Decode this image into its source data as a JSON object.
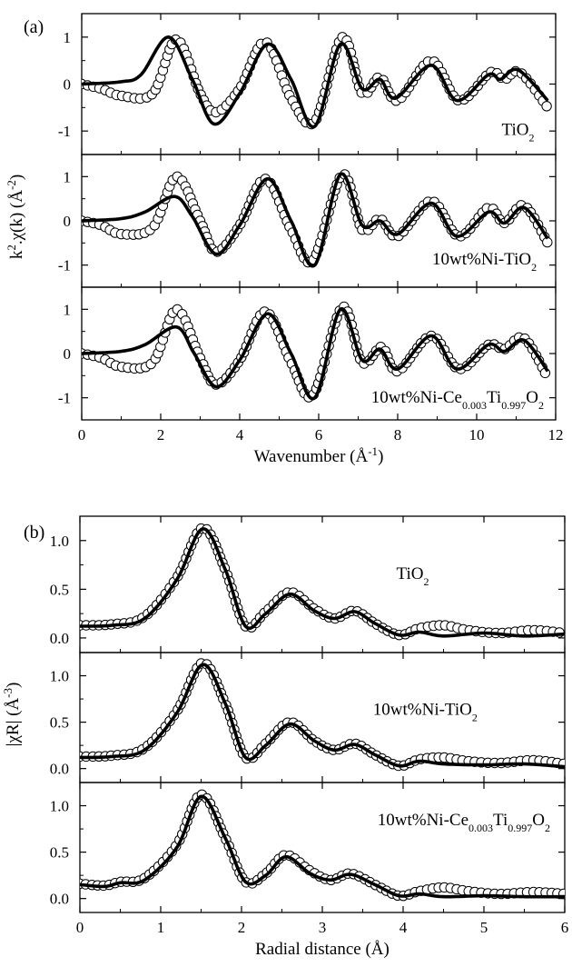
{
  "chart_data": [
    {
      "type": "line",
      "panel_label": "(a)",
      "xlabel_main": "Wavenumber (Å",
      "xlabel_sup": "-1",
      "xlabel_end": ")",
      "ylabel_pre": "k",
      "ylabel_sup": "2",
      "ylabel_mid": ".χ(k) (Å",
      "ylabel_sup2": "-2",
      "ylabel_end": ")",
      "xlim": [
        0,
        12
      ],
      "ylim": [
        -1.5,
        1.5
      ],
      "x_ticks": [
        "0",
        "2",
        "4",
        "6",
        "8",
        "10",
        "12"
      ],
      "y_ticks": [
        "-1",
        "0",
        "1"
      ],
      "panels": [
        {
          "label_runs": [
            "TiO",
            "2"
          ],
          "experimental_markers": "open circles",
          "fit_line": "thick solid",
          "fit_points": [
            [
              0,
              0
            ],
            [
              1,
              0.05
            ],
            [
              1.5,
              0.2
            ],
            [
              2.2,
              1.0
            ],
            [
              2.8,
              0.1
            ],
            [
              3.35,
              -0.85
            ],
            [
              4.0,
              -0.2
            ],
            [
              4.7,
              0.85
            ],
            [
              5.3,
              0.1
            ],
            [
              5.9,
              -0.9
            ],
            [
              6.55,
              0.85
            ],
            [
              7.1,
              -0.1
            ],
            [
              7.55,
              0.1
            ],
            [
              7.95,
              -0.3
            ],
            [
              8.85,
              0.4
            ],
            [
              9.5,
              -0.35
            ],
            [
              10.3,
              0.2
            ],
            [
              10.6,
              0.1
            ],
            [
              11.05,
              0.3
            ],
            [
              11.8,
              -0.35
            ]
          ],
          "experimental_points": [
            [
              0,
              0
            ],
            [
              0.5,
              -0.1
            ],
            [
              1.0,
              -0.25
            ],
            [
              1.8,
              -0.2
            ],
            [
              2.4,
              0.95
            ],
            [
              3.0,
              -0.2
            ],
            [
              3.4,
              -0.6
            ],
            [
              4.0,
              -0.1
            ],
            [
              4.65,
              0.9
            ],
            [
              5.3,
              -0.3
            ],
            [
              5.9,
              -0.8
            ],
            [
              6.6,
              1.0
            ],
            [
              7.1,
              -0.2
            ],
            [
              7.55,
              0.15
            ],
            [
              8.0,
              -0.35
            ],
            [
              8.85,
              0.5
            ],
            [
              9.55,
              -0.35
            ],
            [
              10.35,
              0.25
            ],
            [
              10.7,
              0.1
            ],
            [
              11.1,
              0.25
            ],
            [
              11.8,
              -0.5
            ]
          ]
        },
        {
          "label_runs": [
            "10wt%Ni-TiO",
            "2"
          ],
          "experimental_markers": "open circles",
          "fit_line": "thick solid",
          "fit_points": [
            [
              0,
              0
            ],
            [
              1,
              0.05
            ],
            [
              1.6,
              0.2
            ],
            [
              2.35,
              0.55
            ],
            [
              2.8,
              0.1
            ],
            [
              3.4,
              -0.75
            ],
            [
              4.0,
              -0.1
            ],
            [
              4.7,
              0.95
            ],
            [
              5.3,
              0.0
            ],
            [
              5.9,
              -1.0
            ],
            [
              6.55,
              1.05
            ],
            [
              7.1,
              -0.1
            ],
            [
              7.55,
              0.0
            ],
            [
              8.0,
              -0.3
            ],
            [
              8.85,
              0.4
            ],
            [
              9.5,
              -0.35
            ],
            [
              10.3,
              0.2
            ],
            [
              10.7,
              -0.05
            ],
            [
              11.2,
              0.3
            ],
            [
              11.8,
              -0.4
            ]
          ],
          "experimental_points": [
            [
              0,
              0
            ],
            [
              0.5,
              -0.1
            ],
            [
              1.0,
              -0.3
            ],
            [
              1.8,
              -0.15
            ],
            [
              2.4,
              1.0
            ],
            [
              3.0,
              0.0
            ],
            [
              3.4,
              -0.7
            ],
            [
              4.0,
              -0.1
            ],
            [
              4.65,
              0.95
            ],
            [
              5.3,
              -0.2
            ],
            [
              5.85,
              -0.9
            ],
            [
              6.6,
              1.05
            ],
            [
              7.1,
              -0.2
            ],
            [
              7.55,
              0.05
            ],
            [
              8.0,
              -0.35
            ],
            [
              8.85,
              0.45
            ],
            [
              9.55,
              -0.35
            ],
            [
              10.3,
              0.3
            ],
            [
              10.7,
              -0.05
            ],
            [
              11.2,
              0.35
            ],
            [
              11.8,
              -0.5
            ]
          ]
        },
        {
          "label_runs": [
            "10wt%Ni-Ce",
            "0.003",
            "Ti",
            "0.997",
            "O",
            "2"
          ],
          "experimental_markers": "open circles",
          "fit_line": "thick solid",
          "fit_points": [
            [
              0,
              0
            ],
            [
              1,
              0.05
            ],
            [
              1.6,
              0.2
            ],
            [
              2.4,
              0.6
            ],
            [
              2.85,
              0.0
            ],
            [
              3.4,
              -0.75
            ],
            [
              4.0,
              -0.15
            ],
            [
              4.7,
              0.9
            ],
            [
              5.3,
              0.0
            ],
            [
              5.9,
              -1.0
            ],
            [
              6.55,
              1.0
            ],
            [
              7.1,
              -0.15
            ],
            [
              7.55,
              0.1
            ],
            [
              8.0,
              -0.35
            ],
            [
              8.85,
              0.4
            ],
            [
              9.5,
              -0.35
            ],
            [
              10.3,
              0.2
            ],
            [
              10.7,
              0.05
            ],
            [
              11.2,
              0.3
            ],
            [
              11.8,
              -0.4
            ]
          ],
          "experimental_points": [
            [
              0,
              0
            ],
            [
              0.5,
              -0.1
            ],
            [
              1.0,
              -0.3
            ],
            [
              1.8,
              -0.2
            ],
            [
              2.4,
              1.0
            ],
            [
              3.0,
              -0.1
            ],
            [
              3.4,
              -0.7
            ],
            [
              4.0,
              -0.15
            ],
            [
              4.65,
              0.95
            ],
            [
              5.3,
              -0.2
            ],
            [
              5.85,
              -0.95
            ],
            [
              6.6,
              1.05
            ],
            [
              7.1,
              -0.2
            ],
            [
              7.6,
              0.15
            ],
            [
              8.0,
              -0.4
            ],
            [
              8.85,
              0.4
            ],
            [
              9.55,
              -0.35
            ],
            [
              10.3,
              0.2
            ],
            [
              10.7,
              0.1
            ],
            [
              11.2,
              0.35
            ],
            [
              11.8,
              -0.55
            ]
          ]
        }
      ]
    },
    {
      "type": "line",
      "panel_label": "(b)",
      "xlabel": "Radial distance (Å)",
      "ylabel_main": "|χR| (Å",
      "ylabel_sup": "-3",
      "ylabel_end": ")",
      "xlim": [
        0,
        6
      ],
      "ylim": [
        -0.15,
        1.25
      ],
      "x_ticks": [
        "0",
        "1",
        "2",
        "3",
        "4",
        "5",
        "6"
      ],
      "y_ticks": [
        "0.0",
        "0.5",
        "1.0"
      ],
      "panels": [
        {
          "label_runs": [
            "TiO",
            "2"
          ],
          "experimental_markers": "open circles",
          "fit_line": "thick solid",
          "fit_points": [
            [
              0,
              0.12
            ],
            [
              0.4,
              0.13
            ],
            [
              0.8,
              0.2
            ],
            [
              1.2,
              0.6
            ],
            [
              1.52,
              1.12
            ],
            [
              1.8,
              0.7
            ],
            [
              2.05,
              0.12
            ],
            [
              2.3,
              0.25
            ],
            [
              2.6,
              0.45
            ],
            [
              2.9,
              0.28
            ],
            [
              3.15,
              0.2
            ],
            [
              3.4,
              0.27
            ],
            [
              3.65,
              0.15
            ],
            [
              3.95,
              0.03
            ],
            [
              4.2,
              0.06
            ],
            [
              4.5,
              0.02
            ],
            [
              5.0,
              0.05
            ],
            [
              5.5,
              0.02
            ],
            [
              6.0,
              0.04
            ]
          ],
          "experimental_points": [
            [
              0,
              0.13
            ],
            [
              0.4,
              0.14
            ],
            [
              0.8,
              0.22
            ],
            [
              1.2,
              0.62
            ],
            [
              1.52,
              1.13
            ],
            [
              1.8,
              0.7
            ],
            [
              2.05,
              0.12
            ],
            [
              2.3,
              0.27
            ],
            [
              2.6,
              0.47
            ],
            [
              2.9,
              0.3
            ],
            [
              3.15,
              0.2
            ],
            [
              3.4,
              0.28
            ],
            [
              3.65,
              0.15
            ],
            [
              3.95,
              0.03
            ],
            [
              4.2,
              0.1
            ],
            [
              4.5,
              0.13
            ],
            [
              4.8,
              0.08
            ],
            [
              5.2,
              0.05
            ],
            [
              5.6,
              0.08
            ],
            [
              6.0,
              0.05
            ]
          ]
        },
        {
          "label_runs": [
            "10wt%Ni-TiO",
            "2"
          ],
          "experimental_markers": "open circles",
          "fit_line": "thick solid",
          "fit_points": [
            [
              0,
              0.12
            ],
            [
              0.4,
              0.13
            ],
            [
              0.8,
              0.2
            ],
            [
              1.2,
              0.6
            ],
            [
              1.52,
              1.12
            ],
            [
              1.8,
              0.7
            ],
            [
              2.05,
              0.12
            ],
            [
              2.3,
              0.25
            ],
            [
              2.6,
              0.48
            ],
            [
              2.9,
              0.3
            ],
            [
              3.15,
              0.2
            ],
            [
              3.4,
              0.26
            ],
            [
              3.65,
              0.15
            ],
            [
              3.95,
              0.03
            ],
            [
              4.2,
              0.08
            ],
            [
              4.5,
              0.05
            ],
            [
              5.0,
              0.04
            ],
            [
              5.5,
              0.05
            ],
            [
              6.0,
              0.02
            ]
          ],
          "experimental_points": [
            [
              0,
              0.13
            ],
            [
              0.4,
              0.14
            ],
            [
              0.8,
              0.22
            ],
            [
              1.2,
              0.62
            ],
            [
              1.52,
              1.14
            ],
            [
              1.8,
              0.7
            ],
            [
              2.05,
              0.12
            ],
            [
              2.3,
              0.27
            ],
            [
              2.6,
              0.5
            ],
            [
              2.9,
              0.3
            ],
            [
              3.15,
              0.2
            ],
            [
              3.4,
              0.27
            ],
            [
              3.65,
              0.15
            ],
            [
              3.95,
              0.03
            ],
            [
              4.2,
              0.1
            ],
            [
              4.5,
              0.12
            ],
            [
              4.8,
              0.08
            ],
            [
              5.2,
              0.06
            ],
            [
              5.6,
              0.09
            ],
            [
              6.0,
              0.05
            ]
          ]
        },
        {
          "label_runs": [
            "10wt%Ni-Ce",
            "0.003",
            "Ti",
            "0.997",
            "O",
            "2"
          ],
          "experimental_markers": "open circles",
          "fit_line": "thick solid",
          "fit_points": [
            [
              0,
              0.15
            ],
            [
              0.3,
              0.13
            ],
            [
              0.5,
              0.17
            ],
            [
              0.8,
              0.2
            ],
            [
              1.2,
              0.55
            ],
            [
              1.5,
              1.1
            ],
            [
              1.8,
              0.65
            ],
            [
              2.05,
              0.18
            ],
            [
              2.3,
              0.25
            ],
            [
              2.55,
              0.45
            ],
            [
              2.85,
              0.27
            ],
            [
              3.1,
              0.2
            ],
            [
              3.35,
              0.26
            ],
            [
              3.65,
              0.15
            ],
            [
              3.95,
              0.03
            ],
            [
              4.2,
              0.05
            ],
            [
              4.5,
              0.02
            ],
            [
              5.0,
              0.03
            ],
            [
              5.5,
              0.02
            ],
            [
              6.0,
              0.02
            ]
          ],
          "experimental_points": [
            [
              0,
              0.16
            ],
            [
              0.3,
              0.14
            ],
            [
              0.5,
              0.18
            ],
            [
              0.8,
              0.22
            ],
            [
              1.2,
              0.58
            ],
            [
              1.5,
              1.12
            ],
            [
              1.8,
              0.65
            ],
            [
              2.05,
              0.18
            ],
            [
              2.3,
              0.27
            ],
            [
              2.55,
              0.47
            ],
            [
              2.85,
              0.3
            ],
            [
              3.1,
              0.2
            ],
            [
              3.35,
              0.27
            ],
            [
              3.65,
              0.15
            ],
            [
              3.95,
              0.03
            ],
            [
              4.2,
              0.08
            ],
            [
              4.5,
              0.12
            ],
            [
              4.8,
              0.08
            ],
            [
              5.2,
              0.05
            ],
            [
              5.6,
              0.07
            ],
            [
              6.0,
              0.05
            ]
          ]
        }
      ]
    }
  ]
}
